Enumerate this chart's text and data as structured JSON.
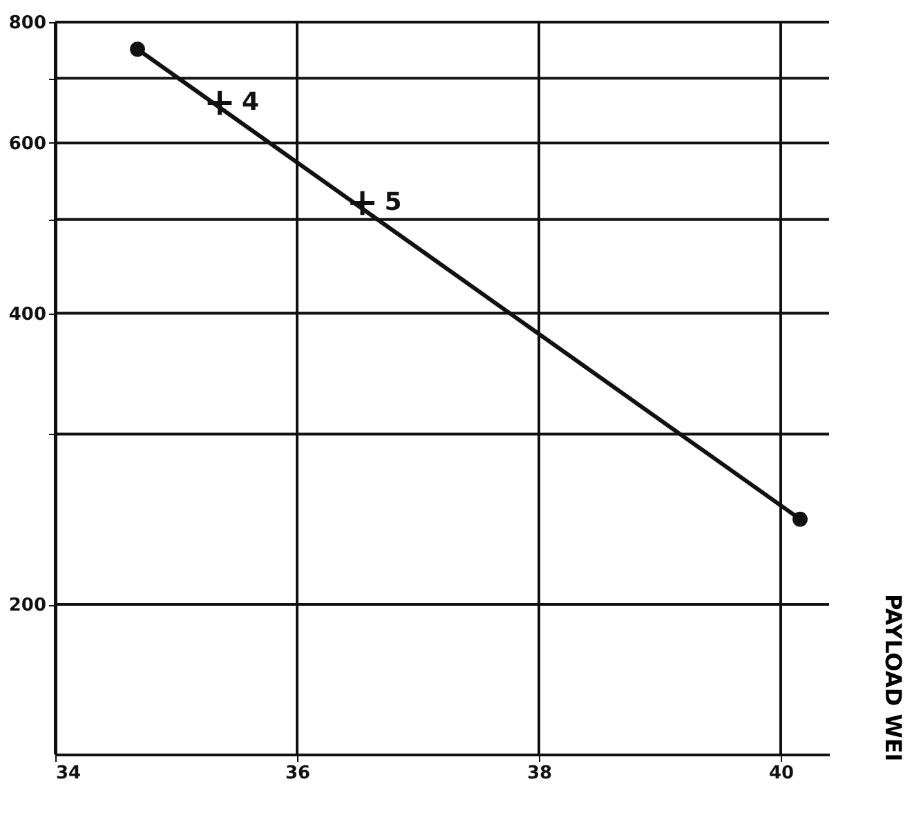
{
  "chart_data": {
    "type": "line",
    "xlim": [
      34,
      40.4
    ],
    "xticks": [
      34,
      36,
      38,
      40
    ],
    "ylim": [
      140,
      800
    ],
    "yticks": [
      {
        "value": 200,
        "label": "200"
      },
      {
        "value": 300,
        "label": null
      },
      {
        "value": 400,
        "label": "400"
      },
      {
        "value": 500,
        "label": null
      },
      {
        "value": 600,
        "label": "600"
      },
      {
        "value": 700,
        "label": null
      },
      {
        "value": 800,
        "label": "800"
      }
    ],
    "log": "y",
    "grid": true,
    "series": [
      {
        "color": "#111111",
        "marker": "circle",
        "x": [
          34.68,
          40.16
        ],
        "values": [
          750,
          245
        ]
      },
      {
        "type": "scatter",
        "color": "#111111",
        "marker": "cross",
        "x": [
          35.36,
          36.54
        ],
        "values": [
          660,
          520
        ]
      }
    ],
    "annotations": [
      {
        "text": "4",
        "x": 35.36,
        "y": 660
      },
      {
        "text": "5",
        "x": 36.54,
        "y": 520
      },
      "PAYLOAD WEI"
    ]
  }
}
